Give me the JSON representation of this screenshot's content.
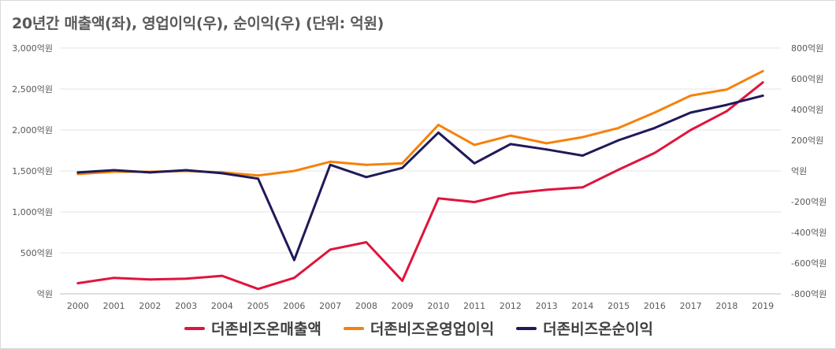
{
  "title": "20년간 매출액(좌), 영업이익(우), 순이익(우) (단위: 억원)",
  "chart_data": {
    "type": "line",
    "title": "20년간 매출액(좌), 영업이익(우), 순이익(우) (단위: 억원)",
    "x": [
      "2000",
      "2001",
      "2002",
      "2003",
      "2004",
      "2005",
      "2006",
      "2007",
      "2008",
      "2009",
      "2010",
      "2011",
      "2012",
      "2013",
      "2014",
      "2015",
      "2016",
      "2017",
      "2018",
      "2019"
    ],
    "y_left": {
      "lim": [
        0,
        3000
      ],
      "ticks": [
        0,
        500,
        1000,
        1500,
        2000,
        2500,
        3000
      ],
      "tick_labels": [
        "억원",
        "500억원",
        "1,000억원",
        "1,500억원",
        "2,000억원",
        "2,500억원",
        "3,000억원"
      ]
    },
    "y_right": {
      "lim": [
        -800,
        800
      ],
      "ticks": [
        -800,
        -600,
        -400,
        -200,
        0,
        200,
        400,
        600,
        800
      ],
      "tick_labels": [
        "-800억원",
        "-600억원",
        "-400억원",
        "-200억원",
        "억원",
        "200억원",
        "400억원",
        "600억원",
        "800억원"
      ]
    },
    "grid": "horizontal",
    "legend_position": "bottom",
    "series": [
      {
        "name": "더존비즈온매출액",
        "axis": "left",
        "color": "#e0143c",
        "values": [
          130,
          195,
          175,
          185,
          220,
          60,
          195,
          540,
          630,
          160,
          1165,
          1120,
          1225,
          1270,
          1300,
          1515,
          1720,
          2000,
          2230,
          2580
        ]
      },
      {
        "name": "더존비즈온영업이익",
        "axis": "right",
        "color": "#f5820a",
        "values": [
          -20,
          -5,
          -5,
          0,
          -10,
          -30,
          0,
          60,
          40,
          50,
          300,
          170,
          230,
          180,
          220,
          280,
          380,
          490,
          530,
          650
        ]
      },
      {
        "name": "더존비즈온순이익",
        "axis": "right",
        "color": "#1f1a5a",
        "values": [
          -10,
          5,
          -10,
          5,
          -15,
          -50,
          -580,
          40,
          -40,
          20,
          250,
          50,
          175,
          140,
          100,
          200,
          280,
          380,
          430,
          490
        ]
      }
    ]
  }
}
